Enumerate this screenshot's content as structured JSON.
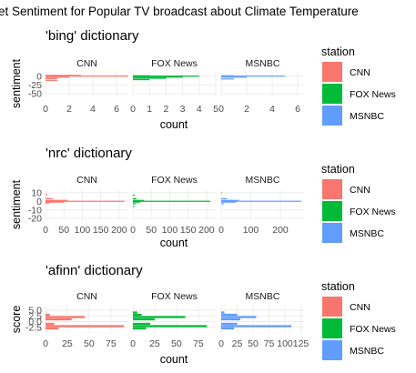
{
  "title": "et Sentiment for Popular TV broadcast about Climate Temperature",
  "colors": {
    "CNN": "#F8766D",
    "FOX News": "#00BA38",
    "MSNBC": "#619CFF"
  },
  "legend": {
    "title": "station",
    "items": [
      "CNN",
      "FOX News",
      "MSNBC"
    ]
  },
  "chart_data": [
    {
      "type": "bar",
      "title": "'bing' dictionary",
      "xlabel": "count",
      "ylabel": "sentiment",
      "orientation": "horizontal",
      "ylim": [
        -55,
        12
      ],
      "y_ticks": [
        0,
        -25,
        -50
      ],
      "y_tick_labels": [
        "0",
        "-25",
        "-50"
      ],
      "facets": [
        {
          "name": "CNN",
          "xlim": [
            0,
            7
          ],
          "x_ticks": [
            0,
            2,
            4,
            6
          ],
          "x_tick_labels": [
            "0",
            "2",
            "4",
            "6"
          ],
          "bars": [
            {
              "y": 2,
              "x": 3
            },
            {
              "y": 0,
              "x": 7
            },
            {
              "y": -3,
              "x": 2
            },
            {
              "y": -7,
              "x": 1
            },
            {
              "y": -12,
              "x": 1
            }
          ]
        },
        {
          "name": "FOX News",
          "xlim": [
            0,
            5
          ],
          "x_ticks": [
            0,
            1,
            2,
            3,
            4,
            5
          ],
          "x_tick_labels": [
            "0",
            "1",
            "2",
            "3",
            "4",
            "5"
          ],
          "bars": [
            {
              "y": 1,
              "x": 1
            },
            {
              "y": 0,
              "x": 4
            },
            {
              "y": -3,
              "x": 3
            },
            {
              "y": -6,
              "x": 2
            },
            {
              "y": -10,
              "x": 1
            }
          ]
        },
        {
          "name": "MSNBC",
          "xlim": [
            0,
            6.5
          ],
          "x_ticks": [
            0,
            2,
            4,
            6
          ],
          "x_tick_labels": [
            "0",
            "2",
            "4",
            "6"
          ],
          "bars": [
            {
              "y": 1,
              "x": 1
            },
            {
              "y": 0,
              "x": 5
            },
            {
              "y": -3,
              "x": 2
            },
            {
              "y": -8,
              "x": 1
            }
          ]
        }
      ]
    },
    {
      "type": "bar",
      "title": "'nrc' dictionary",
      "xlabel": "count",
      "ylabel": "sentiment",
      "orientation": "horizontal",
      "ylim": [
        -22,
        14
      ],
      "y_ticks": [
        10,
        0,
        -10,
        -20
      ],
      "y_tick_labels": [
        "10",
        "0",
        "-10",
        "-20"
      ],
      "facets": [
        {
          "name": "CNN",
          "xlim": [
            0,
            225
          ],
          "x_ticks": [
            0,
            50,
            100,
            150,
            200
          ],
          "x_tick_labels": [
            "0",
            "50",
            "100",
            "150",
            "200"
          ],
          "bars": [
            {
              "y": 8,
              "x": 5
            },
            {
              "y": 3,
              "x": 20
            },
            {
              "y": 1,
              "x": 60
            },
            {
              "y": 0,
              "x": 215
            },
            {
              "y": -1,
              "x": 50
            },
            {
              "y": -2,
              "x": 10
            }
          ]
        },
        {
          "name": "FOX News",
          "xlim": [
            0,
            225
          ],
          "x_ticks": [
            0,
            50,
            100,
            150,
            200
          ],
          "x_tick_labels": [
            "0",
            "50",
            "100",
            "150",
            "200"
          ],
          "bars": [
            {
              "y": 7,
              "x": 5
            },
            {
              "y": 3,
              "x": 10
            },
            {
              "y": 1,
              "x": 30
            },
            {
              "y": 0,
              "x": 210
            },
            {
              "y": -1,
              "x": 20
            },
            {
              "y": -3,
              "x": 8
            },
            {
              "y": -6,
              "x": 4
            }
          ]
        },
        {
          "name": "MSNBC",
          "xlim": [
            0,
            280
          ],
          "x_ticks": [
            0,
            100,
            200
          ],
          "x_tick_labels": [
            "0",
            "100",
            "200"
          ],
          "bars": [
            {
              "y": 10,
              "x": 3
            },
            {
              "y": 3,
              "x": 20
            },
            {
              "y": 1,
              "x": 60
            },
            {
              "y": 0,
              "x": 270
            },
            {
              "y": -1,
              "x": 50
            },
            {
              "y": -3,
              "x": 10
            }
          ]
        }
      ]
    },
    {
      "type": "bar",
      "title": "'afinn' dictionary",
      "xlabel": "count",
      "ylabel": "score",
      "orientation": "horizontal",
      "ylim": [
        -5,
        7
      ],
      "y_ticks": [
        5,
        2.5,
        0,
        -2.5
      ],
      "y_tick_labels": [
        "5.0",
        "2.5",
        "0.0",
        "-2.5"
      ],
      "facets": [
        {
          "name": "CNN",
          "xlim": [
            0,
            95
          ],
          "x_ticks": [
            0,
            25,
            50,
            75
          ],
          "x_tick_labels": [
            "0",
            "25",
            "50",
            "75"
          ],
          "bars": [
            {
              "y": 3,
              "x": 5
            },
            {
              "y": 2,
              "x": 45
            },
            {
              "y": 1,
              "x": 30
            },
            {
              "y": -1,
              "x": 10
            },
            {
              "y": -2,
              "x": 90
            },
            {
              "y": -3,
              "x": 15
            }
          ]
        },
        {
          "name": "FOX News",
          "xlim": [
            0,
            95
          ],
          "x_ticks": [
            0,
            25,
            50,
            75
          ],
          "x_tick_labels": [
            "0",
            "25",
            "50",
            "75"
          ],
          "bars": [
            {
              "y": 4,
              "x": 5
            },
            {
              "y": 3,
              "x": 10
            },
            {
              "y": 2,
              "x": 60
            },
            {
              "y": 1,
              "x": 25
            },
            {
              "y": -1,
              "x": 20
            },
            {
              "y": -2,
              "x": 85
            },
            {
              "y": -3,
              "x": 15
            }
          ]
        },
        {
          "name": "MSNBC",
          "xlim": [
            0,
            130
          ],
          "x_ticks": [
            0,
            25,
            50,
            75,
            100,
            125
          ],
          "x_tick_labels": [
            "0",
            "25",
            "50",
            "75",
            "100",
            "125"
          ],
          "bars": [
            {
              "y": 4,
              "x": 5
            },
            {
              "y": 3,
              "x": 25
            },
            {
              "y": 2,
              "x": 55
            },
            {
              "y": 1,
              "x": 30
            },
            {
              "y": -1,
              "x": 25
            },
            {
              "y": -2,
              "x": 110
            },
            {
              "y": -3,
              "x": 20
            }
          ]
        }
      ]
    }
  ]
}
